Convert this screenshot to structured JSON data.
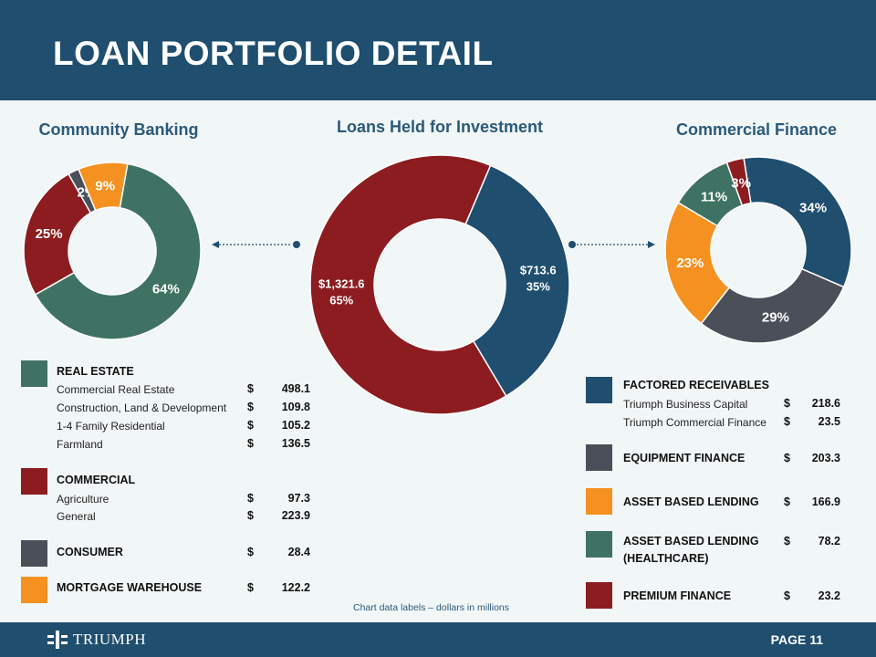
{
  "header": {
    "title": "LOAN PORTFOLIO DETAIL"
  },
  "footer": {
    "logo_text": "TRIUMPH",
    "page_label": "PAGE 11"
  },
  "note": "Chart data labels – dollars in millions",
  "colors": {
    "real_estate": "#3f7262",
    "commercial": "#8c1c1f",
    "consumer": "#4b4f5a",
    "mortgage": "#f59120",
    "navy": "#1f4e6e"
  },
  "chart_data": [
    {
      "type": "pie",
      "title": "Community Banking",
      "donut": true,
      "slices": [
        {
          "name": "Real Estate",
          "value": 64,
          "label": "64%",
          "color": "#3f7262"
        },
        {
          "name": "Commercial",
          "value": 25,
          "label": "25%",
          "color": "#8c1c1f"
        },
        {
          "name": "Consumer",
          "value": 2,
          "label": "2%",
          "color": "#4b4f5a"
        },
        {
          "name": "Mortgage Warehouse",
          "value": 9,
          "label": "9%",
          "color": "#f59120"
        }
      ]
    },
    {
      "type": "pie",
      "title": "Loans Held for Investment",
      "donut": true,
      "slices": [
        {
          "name": "Commercial Finance",
          "value": 713.6,
          "label": "$713.6",
          "sublabel": "35%",
          "color": "#1f4e6e"
        },
        {
          "name": "Community Banking",
          "value": 1321.6,
          "label": "$1,321.6",
          "sublabel": "65%",
          "color": "#8c1c1f"
        }
      ]
    },
    {
      "type": "pie",
      "title": "Commercial Finance",
      "donut": true,
      "slices": [
        {
          "name": "Factored Receivables",
          "value": 34,
          "label": "34%",
          "color": "#1f4e6e"
        },
        {
          "name": "Equipment Finance",
          "value": 29,
          "label": "29%",
          "color": "#4b4f5a"
        },
        {
          "name": "Asset Based Lending",
          "value": 23,
          "label": "23%",
          "color": "#f59120"
        },
        {
          "name": "Asset Based Lending (Healthcare)",
          "value": 11,
          "label": "11%",
          "color": "#3f7262"
        },
        {
          "name": "Premium Finance",
          "value": 3,
          "label": "3%",
          "color": "#8c1c1f"
        }
      ]
    }
  ],
  "left_legend": {
    "real_estate": {
      "head": "REAL ESTATE",
      "items": [
        {
          "label": "Commercial Real Estate",
          "cur": "$",
          "value": "498.1"
        },
        {
          "label": "Construction, Land & Development",
          "cur": "$",
          "value": "109.8"
        },
        {
          "label": "1-4 Family Residential",
          "cur": "$",
          "value": "105.2"
        },
        {
          "label": "Farmland",
          "cur": "$",
          "value": "136.5"
        }
      ]
    },
    "commercial": {
      "head": "COMMERCIAL",
      "items": [
        {
          "label": "Agriculture",
          "cur": "$",
          "value": "97.3"
        },
        {
          "label": "General",
          "cur": "$",
          "value": "223.9"
        }
      ]
    },
    "consumer": {
      "head": "CONSUMER",
      "cur": "$",
      "value": "28.4"
    },
    "mortgage": {
      "head": "MORTGAGE WAREHOUSE",
      "cur": "$",
      "value": "122.2"
    }
  },
  "right_legend": {
    "factored": {
      "head": "FACTORED RECEIVABLES",
      "items": [
        {
          "label": "Triumph Business Capital",
          "cur": "$",
          "value": "218.6"
        },
        {
          "label": "Triumph Commercial Finance",
          "cur": "$",
          "value": "23.5"
        }
      ]
    },
    "equipment": {
      "head": "EQUIPMENT FINANCE",
      "cur": "$",
      "value": "203.3"
    },
    "abl": {
      "head": "ASSET BASED LENDING",
      "cur": "$",
      "value": "166.9"
    },
    "abl_health": {
      "head": "ASSET BASED LENDING",
      "head2": "(HEALTHCARE)",
      "cur": "$",
      "value": "78.2"
    },
    "premium": {
      "head": "PREMIUM FINANCE",
      "cur": "$",
      "value": "23.2"
    }
  }
}
